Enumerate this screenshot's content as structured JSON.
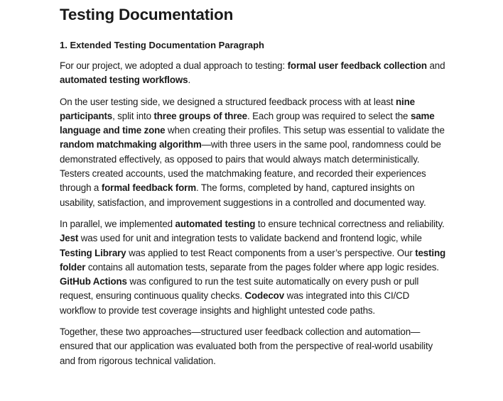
{
  "title": "Testing Documentation",
  "section_heading": "1. Extended Testing Documentation Paragraph",
  "paragraphs": [
    [
      {
        "t": "For our project, we adopted a dual approach to testing: "
      },
      {
        "t": "formal user feedback collection",
        "b": true
      },
      {
        "t": " and "
      },
      {
        "t": "automated testing workflows",
        "b": true
      },
      {
        "t": "."
      }
    ],
    [
      {
        "t": "On the user testing side, we designed a structured feedback process with at least "
      },
      {
        "t": "nine participants",
        "b": true
      },
      {
        "t": ", split into "
      },
      {
        "t": "three groups of three",
        "b": true
      },
      {
        "t": ". Each group was required to select the "
      },
      {
        "t": "same language and time zone",
        "b": true
      },
      {
        "t": " when creating their profiles. This setup was essential to validate the "
      },
      {
        "t": "random matchmaking algorithm",
        "b": true
      },
      {
        "t": "—with three users in the same pool, randomness could be demonstrated effectively, as opposed to pairs that would always match deterministically. Testers created accounts, used the matchmaking feature, and recorded their experiences through a "
      },
      {
        "t": "formal feedback form",
        "b": true
      },
      {
        "t": ". The forms, completed by hand, captured insights on usability, satisfaction, and improvement suggestions in a controlled and documented way."
      }
    ],
    [
      {
        "t": "In parallel, we implemented "
      },
      {
        "t": "automated testing",
        "b": true
      },
      {
        "t": " to ensure technical correctness and reliability. "
      },
      {
        "t": "Jest",
        "b": true
      },
      {
        "t": " was used for unit and integration tests to validate backend and frontend logic, while "
      },
      {
        "t": "Testing Library",
        "b": true
      },
      {
        "t": " was applied to test React components from a user’s perspective. Our "
      },
      {
        "t": "testing folder",
        "b": true
      },
      {
        "t": " contains all automation tests, separate from the pages folder where app logic resides. "
      },
      {
        "t": "GitHub Actions",
        "b": true
      },
      {
        "t": " was configured to run the test suite automatically on every push or pull request, ensuring continuous quality checks. "
      },
      {
        "t": "Codecov",
        "b": true
      },
      {
        "t": " was integrated into this CI/CD workflow to provide test coverage insights and highlight untested code paths."
      }
    ],
    [
      {
        "t": "Together, these two approaches—structured user feedback collection and automation—ensured that our application was evaluated both from the perspective of real-world usability and from rigorous technical validation."
      }
    ]
  ]
}
